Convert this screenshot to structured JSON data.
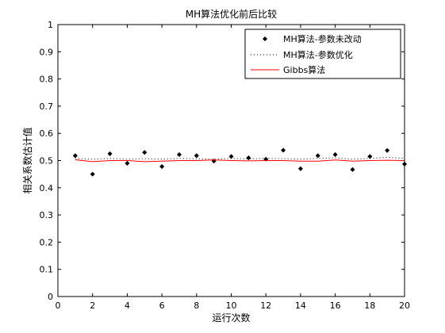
{
  "chart_data": {
    "type": "line",
    "title": "MH算法优化前后比较",
    "xlabel": "运行次数",
    "ylabel": "相关系数估计值",
    "xlim": [
      0,
      20
    ],
    "ylim": [
      0,
      1
    ],
    "xticks": [
      "0",
      "2",
      "4",
      "6",
      "8",
      "10",
      "12",
      "14",
      "16",
      "18",
      "20"
    ],
    "yticks": [
      "0",
      "0.1",
      "0.2",
      "0.3",
      "0.4",
      "0.5",
      "0.6",
      "0.7",
      "0.8",
      "0.9",
      "1"
    ],
    "grid": false,
    "legend_position": "top-right",
    "x": [
      1,
      2,
      3,
      4,
      5,
      6,
      7,
      8,
      9,
      10,
      11,
      12,
      13,
      14,
      15,
      16,
      17,
      18,
      19,
      20
    ],
    "series": [
      {
        "name": "MH算法-参数未改动",
        "style": "markers",
        "color": "#000000",
        "values": [
          0.518,
          0.45,
          0.525,
          0.49,
          0.53,
          0.478,
          0.522,
          0.518,
          0.498,
          0.515,
          0.51,
          0.505,
          0.538,
          0.47,
          0.518,
          0.522,
          0.467,
          0.515,
          0.537,
          0.487
        ]
      },
      {
        "name": "MH算法-参数优化",
        "style": "dotted",
        "color": "#000000",
        "values": [
          0.508,
          0.505,
          0.508,
          0.505,
          0.507,
          0.505,
          0.508,
          0.507,
          0.505,
          0.508,
          0.506,
          0.508,
          0.507,
          0.505,
          0.508,
          0.51,
          0.505,
          0.508,
          0.512,
          0.508
        ]
      },
      {
        "name": "Gibbs算法",
        "style": "solid",
        "color": "#ff0000",
        "values": [
          0.503,
          0.496,
          0.5,
          0.5,
          0.496,
          0.498,
          0.5,
          0.5,
          0.502,
          0.5,
          0.499,
          0.5,
          0.5,
          0.498,
          0.498,
          0.502,
          0.498,
          0.5,
          0.501,
          0.5
        ]
      }
    ]
  }
}
